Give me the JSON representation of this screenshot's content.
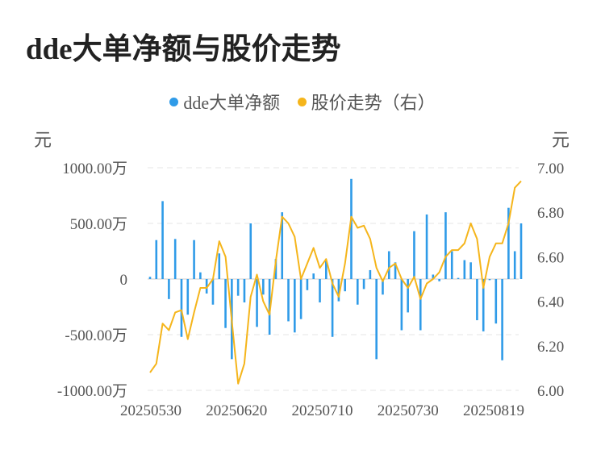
{
  "title": "dde大单净额与股价走势",
  "legend": [
    {
      "label": "dde大单净额",
      "color": "#2f9be8"
    },
    {
      "label": "股价走势（右）",
      "color": "#f5b51b"
    }
  ],
  "axis_units": {
    "left": "元",
    "right": "元"
  },
  "chart_data": {
    "type": "bar+line",
    "title": "dde大单净额与股价走势",
    "x_tick_labels": [
      "20250530",
      "20250620",
      "20250710",
      "20250730",
      "20250819"
    ],
    "left_axis": {
      "ticks": [
        "1000.00万",
        "500.00万",
        "0",
        "-500.00万",
        "-1000.00万"
      ],
      "ylim": [
        -1000,
        1000
      ],
      "unit": "万元"
    },
    "right_axis": {
      "ticks": [
        "7.00",
        "6.80",
        "6.60",
        "6.40",
        "6.20",
        "6.00"
      ],
      "ylim": [
        6.0,
        7.0
      ],
      "unit": "元"
    },
    "grid": true,
    "legend_position": "top-center",
    "series": [
      {
        "name": "dde大单净额",
        "type": "bar",
        "color": "#2f9be8",
        "values": [
          20,
          350,
          700,
          -180,
          360,
          -520,
          -320,
          350,
          60,
          -130,
          -230,
          230,
          -440,
          -720,
          -150,
          -210,
          500,
          -430,
          -140,
          -500,
          180,
          600,
          -380,
          -480,
          -360,
          -100,
          50,
          -210,
          170,
          -520,
          -200,
          -110,
          900,
          -230,
          -90,
          80,
          -720,
          -140,
          250,
          150,
          -460,
          -300,
          430,
          -460,
          580,
          40,
          -20,
          600,
          250,
          10,
          170,
          150,
          -370,
          -470,
          -10,
          -400,
          -730,
          640,
          250,
          500
        ]
      },
      {
        "name": "股价走势（右）",
        "type": "line",
        "color": "#f5b51b",
        "values": [
          6.08,
          6.12,
          6.3,
          6.27,
          6.35,
          6.36,
          6.23,
          6.35,
          6.46,
          6.46,
          6.5,
          6.67,
          6.6,
          6.31,
          6.03,
          6.12,
          6.42,
          6.52,
          6.4,
          6.34,
          6.58,
          6.78,
          6.75,
          6.69,
          6.5,
          6.57,
          6.64,
          6.55,
          6.59,
          6.48,
          6.42,
          6.57,
          6.78,
          6.73,
          6.74,
          6.68,
          6.55,
          6.49,
          6.55,
          6.57,
          6.5,
          6.46,
          6.51,
          6.41,
          6.48,
          6.5,
          6.53,
          6.6,
          6.63,
          6.63,
          6.66,
          6.75,
          6.68,
          6.46,
          6.6,
          6.66,
          6.66,
          6.75,
          6.91,
          6.94
        ]
      }
    ]
  }
}
